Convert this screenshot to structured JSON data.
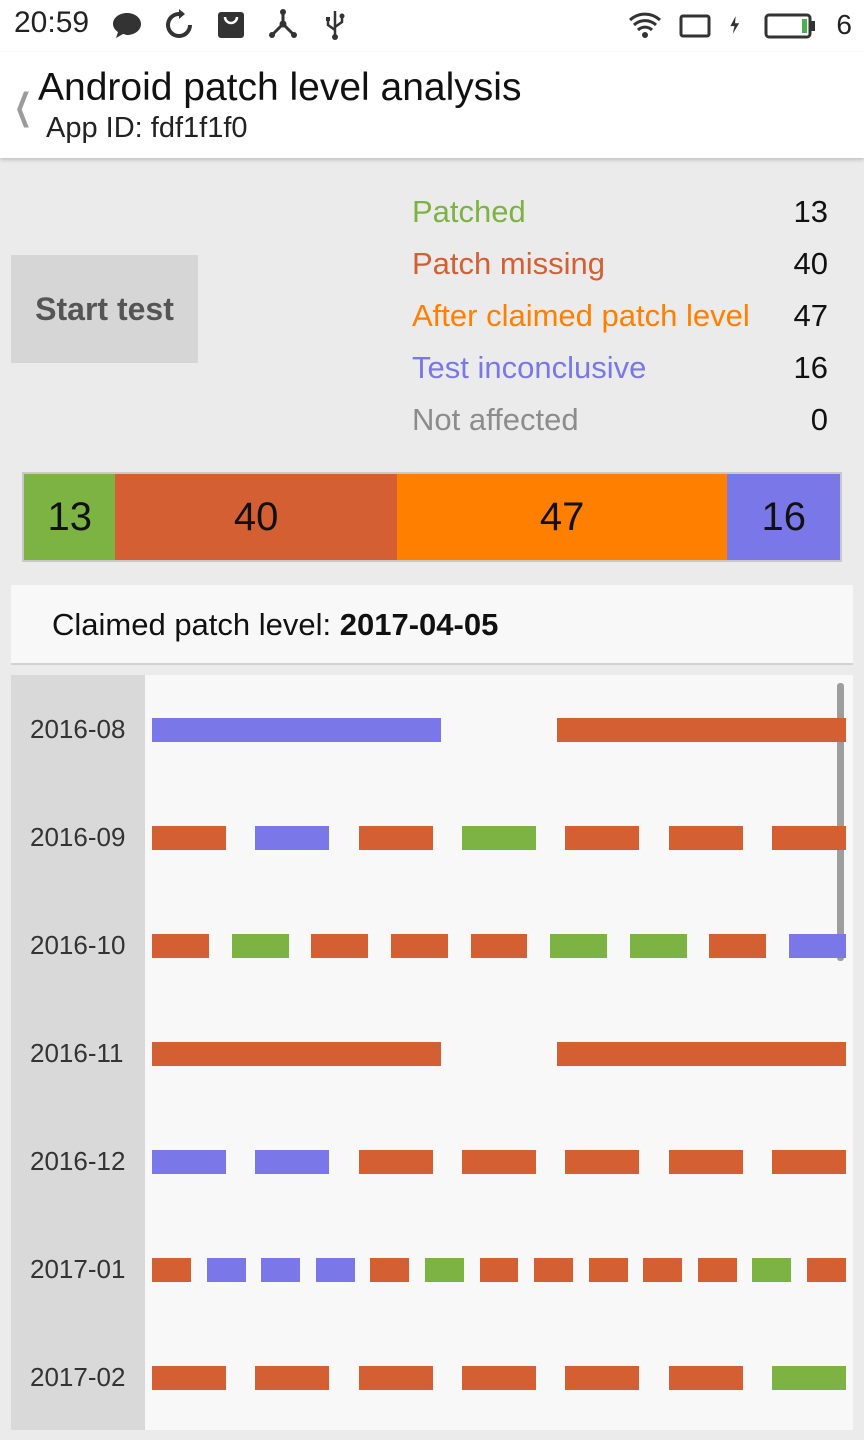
{
  "status_bar": {
    "time": "20:59",
    "left_icons": [
      "chat-icon",
      "sync-icon",
      "bag-icon",
      "share-icon",
      "usb-icon"
    ],
    "right_icons": [
      "wifi-icon",
      "screen-rotate-icon",
      "charging-icon",
      "battery-icon"
    ],
    "battery_number": "6"
  },
  "header": {
    "title": "Android patch level analysis",
    "subtitle": "App ID: fdf1f1f0"
  },
  "start_button": {
    "label": "Start test"
  },
  "colors": {
    "patched": "#7cb342",
    "missing": "#d45f33",
    "after": "#ff7f00",
    "inconclusive": "#7a78e8",
    "not_affected": "#8c8c8c"
  },
  "legend": [
    {
      "label": "Patched",
      "count": "13",
      "status": "patched"
    },
    {
      "label": "Patch missing",
      "count": "40",
      "status": "missing"
    },
    {
      "label": "After claimed patch level",
      "count": "47",
      "status": "after"
    },
    {
      "label": "Test inconclusive",
      "count": "16",
      "status": "inconclusive"
    },
    {
      "label": "Not affected",
      "count": "0",
      "status": "not_affected"
    }
  ],
  "summary_bar": [
    {
      "value": 13,
      "status": "patched"
    },
    {
      "value": 40,
      "status": "missing"
    },
    {
      "value": 47,
      "status": "after"
    },
    {
      "value": 16,
      "status": "inconclusive"
    }
  ],
  "claimed": {
    "label": "Claimed patch level: ",
    "value": "2017-04-05"
  },
  "timeline": [
    {
      "month": "2016-08",
      "tests": [
        "inconclusive",
        "missing"
      ]
    },
    {
      "month": "2016-09",
      "tests": [
        "missing",
        "inconclusive",
        "missing",
        "patched",
        "missing",
        "missing",
        "missing"
      ]
    },
    {
      "month": "2016-10",
      "tests": [
        "missing",
        "patched",
        "missing",
        "missing",
        "missing",
        "patched",
        "patched",
        "missing",
        "inconclusive"
      ]
    },
    {
      "month": "2016-11",
      "tests": [
        "missing",
        "missing"
      ]
    },
    {
      "month": "2016-12",
      "tests": [
        "inconclusive",
        "inconclusive",
        "missing",
        "missing",
        "missing",
        "missing",
        "missing"
      ]
    },
    {
      "month": "2017-01",
      "tests": [
        "missing",
        "inconclusive",
        "inconclusive",
        "inconclusive",
        "missing",
        "patched",
        "missing",
        "missing",
        "missing",
        "missing",
        "missing",
        "patched",
        "missing"
      ]
    },
    {
      "month": "2017-02",
      "tests": [
        "missing",
        "missing",
        "missing",
        "missing",
        "missing",
        "missing",
        "patched"
      ]
    }
  ]
}
